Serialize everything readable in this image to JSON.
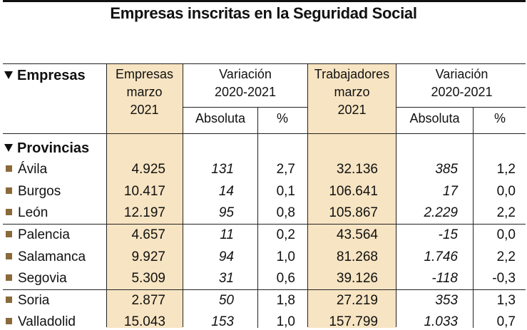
{
  "title": "Empresas inscritas en la Seguridad Social",
  "headers": {
    "empresas": "Empresas",
    "empresas_col": [
      "Empresas",
      "marzo",
      "2021"
    ],
    "variacion": [
      "Variación",
      "2020-2021"
    ],
    "trabajadores_col": [
      "Trabajadores",
      "marzo",
      "2021"
    ],
    "absoluta": "Absoluta",
    "pct": "%",
    "provincias": "Provincias"
  },
  "rows": [
    {
      "name": "Ávila",
      "emp": "4.925",
      "emp_abs": "131",
      "emp_pct": "2,7",
      "trab": "32.136",
      "trab_abs": "385",
      "trab_pct": "1,2"
    },
    {
      "name": "Burgos",
      "emp": "10.417",
      "emp_abs": "14",
      "emp_pct": "0,1",
      "trab": "106.641",
      "trab_abs": "17",
      "trab_pct": "0,0"
    },
    {
      "name": "León",
      "emp": "12.197",
      "emp_abs": "95",
      "emp_pct": "0,8",
      "trab": "105.867",
      "trab_abs": "2.229",
      "trab_pct": "2,2"
    },
    {
      "name": "Palencia",
      "emp": "4.657",
      "emp_abs": "11",
      "emp_pct": "0,2",
      "trab": "43.564",
      "trab_abs": "-15",
      "trab_pct": "0,0"
    },
    {
      "name": "Salamanca",
      "emp": "9.927",
      "emp_abs": "94",
      "emp_pct": "1,0",
      "trab": "81.268",
      "trab_abs": "1.746",
      "trab_pct": "2,2"
    },
    {
      "name": "Segovia",
      "emp": "5.309",
      "emp_abs": "31",
      "emp_pct": "0,6",
      "trab": "39.126",
      "trab_abs": "-118",
      "trab_pct": "-0,3"
    },
    {
      "name": "Soria",
      "emp": "2.877",
      "emp_abs": "50",
      "emp_pct": "1,8",
      "trab": "27.219",
      "trab_abs": "353",
      "trab_pct": "1,3"
    },
    {
      "name": "Valladolid",
      "emp": "15.043",
      "emp_abs": "153",
      "emp_pct": "1,0",
      "trab": "157.799",
      "trab_abs": "1.033",
      "trab_pct": "0,7"
    }
  ],
  "colors": {
    "highlight": "#f7e4c2",
    "bullet": "#8a6a3a"
  }
}
